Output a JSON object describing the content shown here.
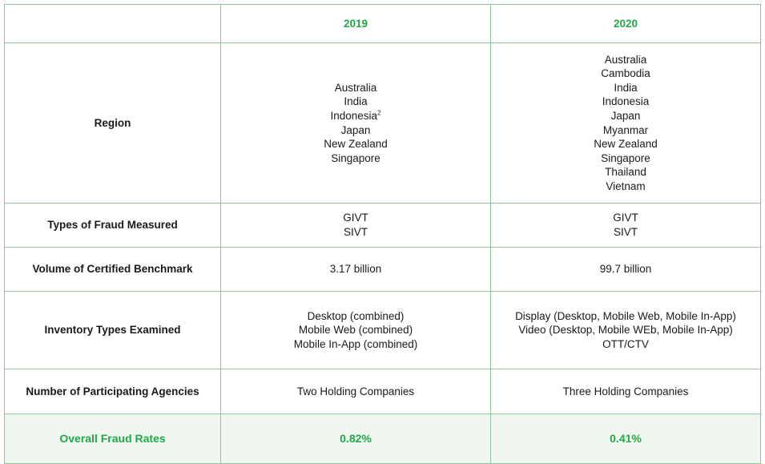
{
  "header": {
    "col_2019": "2019",
    "col_2020": "2020"
  },
  "rows": {
    "region": {
      "label": "Region",
      "y2019": [
        "Australia",
        "India",
        "Indonesia",
        "Japan",
        "New Zealand",
        "Singapore"
      ],
      "y2019_footnote": "2",
      "y2020": [
        "Australia",
        "Cambodia",
        "India",
        "Indonesia",
        "Japan",
        "Myanmar",
        "New Zealand",
        "Singapore",
        "Thailand",
        "Vietnam"
      ]
    },
    "fraud_types": {
      "label": "Types of Fraud Measured",
      "y2019": [
        "GIVT",
        "SIVT"
      ],
      "y2020": [
        "GIVT",
        "SIVT"
      ]
    },
    "volume": {
      "label": "Volume of Certified Benchmark",
      "y2019": "3.17 billion",
      "y2020": "99.7 billion"
    },
    "inventory": {
      "label": "Inventory Types Examined",
      "y2019": [
        "Desktop (combined)",
        "Mobile Web (combined)",
        "Mobile In-App (combined)"
      ],
      "y2020": [
        "Display (Desktop, Mobile Web, Mobile In-App)",
        "Video (Desktop, Mobile WEb, Mobile In-App)",
        "OTT/CTV"
      ]
    },
    "agencies": {
      "label": "Number of Participating Agencies",
      "y2019": "Two Holding Companies",
      "y2020": "Three Holding Companies"
    },
    "overall": {
      "label": "Overall Fraud Rates",
      "y2019": "0.82%",
      "y2020": "0.41%"
    }
  },
  "colors": {
    "accent_green": "#22a847",
    "border": "#8fc79a",
    "highlight_row": "#eef6ef"
  }
}
